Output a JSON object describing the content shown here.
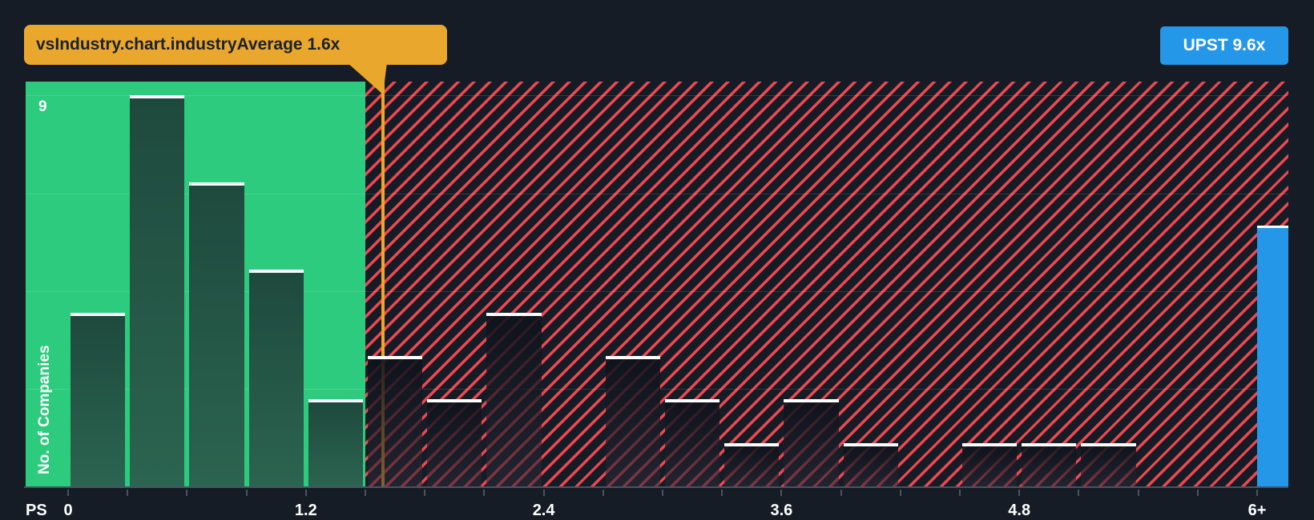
{
  "chart_data": {
    "type": "bar",
    "ylabel": "No. of Companies",
    "xlabel_prefix": "PS",
    "y_max": 9,
    "ylim": [
      0,
      9.3
    ],
    "x_range": [
      0,
      6.3
    ],
    "x_bin_width": 0.3,
    "y_gridlines": [
      2.25,
      4.5,
      6.75,
      9
    ],
    "y_gridline_label": "9",
    "green_zone_to": 1.5,
    "x_ticks": [
      {
        "value": 0,
        "label": "0"
      },
      {
        "value": 1.2,
        "label": "1.2"
      },
      {
        "value": 2.4,
        "label": "2.4"
      },
      {
        "value": 3.6,
        "label": "3.6"
      },
      {
        "value": 4.8,
        "label": "4.8"
      },
      {
        "value": 6,
        "label": "6+"
      }
    ],
    "bars": [
      {
        "from": 0.0,
        "to": 0.3,
        "count": 4
      },
      {
        "from": 0.3,
        "to": 0.6,
        "count": 9
      },
      {
        "from": 0.6,
        "to": 0.9,
        "count": 7
      },
      {
        "from": 0.9,
        "to": 1.2,
        "count": 5
      },
      {
        "from": 1.2,
        "to": 1.5,
        "count": 2
      },
      {
        "from": 1.5,
        "to": 1.8,
        "count": 3
      },
      {
        "from": 1.8,
        "to": 2.1,
        "count": 2
      },
      {
        "from": 2.1,
        "to": 2.4,
        "count": 4
      },
      {
        "from": 2.4,
        "to": 2.7,
        "count": 0
      },
      {
        "from": 2.7,
        "to": 3.0,
        "count": 3
      },
      {
        "from": 3.0,
        "to": 3.3,
        "count": 2
      },
      {
        "from": 3.3,
        "to": 3.6,
        "count": 1
      },
      {
        "from": 3.6,
        "to": 3.9,
        "count": 2
      },
      {
        "from": 3.9,
        "to": 4.2,
        "count": 1
      },
      {
        "from": 4.2,
        "to": 4.5,
        "count": 0
      },
      {
        "from": 4.5,
        "to": 4.8,
        "count": 1
      },
      {
        "from": 4.8,
        "to": 5.1,
        "count": 1
      },
      {
        "from": 5.1,
        "to": 5.4,
        "count": 1
      },
      {
        "from": 5.4,
        "to": 5.7,
        "count": 0
      },
      {
        "from": 5.7,
        "to": 6.0,
        "count": 0
      }
    ],
    "upst_bar": {
      "from": 6.0,
      "count": 6
    },
    "industry_average": {
      "value": 1.6,
      "tooltip_label": "vsIndustry.chart.industryAverage 1.6x"
    },
    "company_badge": {
      "label": "UPST 9.6x",
      "ticker": "UPST",
      "value": 9.6
    },
    "legend": "none",
    "colors": {
      "background": "#151C26",
      "zone_green": "#2DCB7E",
      "hatch_stripe": "#EE4750",
      "green_bar_top": "#1E4A3D",
      "green_bar_bottom": "#2B6450",
      "company_blue": "#2597E8",
      "marker_gold": "#F0A824",
      "tooltip_bg": "#EAA72E",
      "tooltip_text": "#1B222C",
      "axis_gray": "#49525E",
      "label_white": "#FFFFFF"
    }
  }
}
